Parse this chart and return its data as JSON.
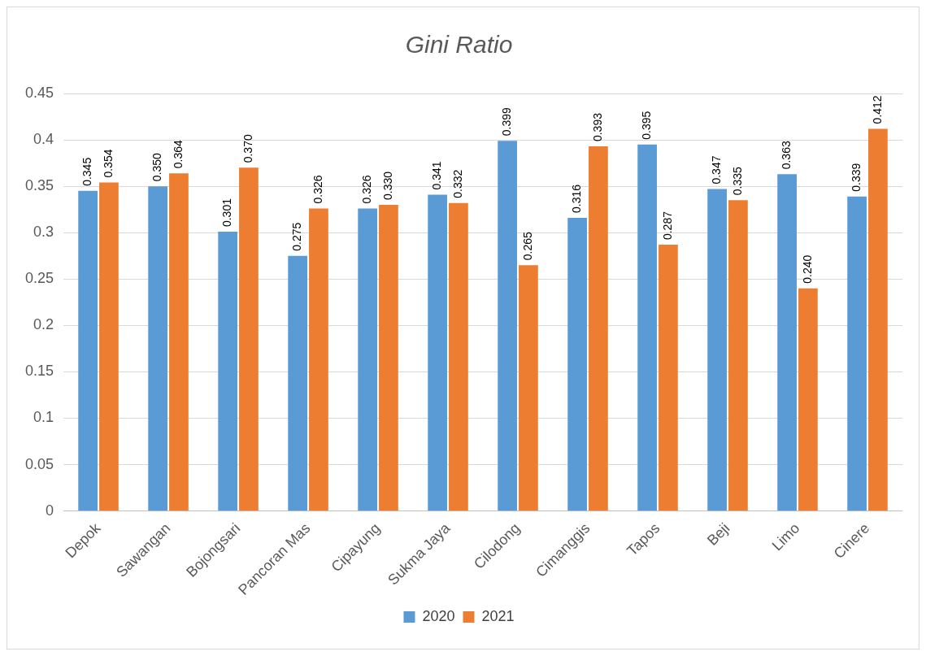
{
  "chart_data": {
    "type": "bar",
    "title": "Gini Ratio",
    "categories": [
      "Depok",
      "Sawangan",
      "Bojongsari",
      "Pancoran Mas",
      "Cipayung",
      "Sukma Jaya",
      "Cilodong",
      "Cimanggis",
      "Tapos",
      "Beji",
      "Limo",
      "Cinere"
    ],
    "series": [
      {
        "name": "2020",
        "color": "#5b9bd5",
        "values": [
          0.345,
          0.35,
          0.301,
          0.275,
          0.326,
          0.341,
          0.399,
          0.316,
          0.395,
          0.347,
          0.363,
          0.339
        ],
        "value_labels": [
          "0.345",
          "0.350",
          "0.301",
          "0.275",
          "0.326",
          "0.341",
          "0.399",
          "0.316",
          "0.395",
          "0.347",
          "0.363",
          "0.339"
        ]
      },
      {
        "name": "2021",
        "color": "#ed7d31",
        "values": [
          0.354,
          0.364,
          0.37,
          0.326,
          0.33,
          0.332,
          0.265,
          0.393,
          0.287,
          0.335,
          0.24,
          0.412
        ],
        "value_labels": [
          "0.354",
          "0.364",
          "0.370",
          "0.326",
          "0.330",
          "0.332",
          "0.265",
          "0.393",
          "0.287",
          "0.335",
          "0.240",
          "0.412"
        ]
      }
    ],
    "ylim": [
      0,
      0.45
    ],
    "yticks": [
      0,
      0.05,
      0.1,
      0.15,
      0.2,
      0.25,
      0.3,
      0.35,
      0.4,
      0.45
    ],
    "grid": "y",
    "legend": "bottom"
  }
}
